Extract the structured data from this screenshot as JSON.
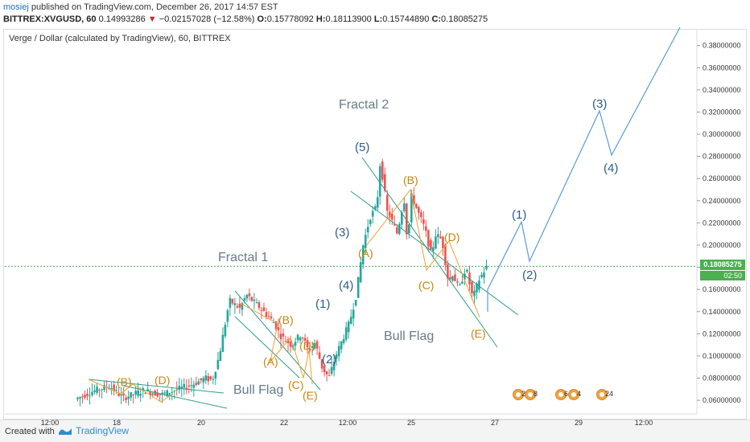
{
  "header": {
    "author": "mosiej",
    "published_text": "published on TradingView.com, December 26, 2017 14:57 EST",
    "symbol": "BITTREX:XVGUSD, 60",
    "last": "0.14993286",
    "change": "−0.02157028 (−12.58%)",
    "o_label": "O:",
    "o": "0.15778092",
    "h_label": "H:",
    "h": "0.18113900",
    "l_label": "L:",
    "l": "0.15744890",
    "c_label": "C:",
    "c": "0.18085275"
  },
  "chart_title": "Verge / Dollar (calculated by TradingView), 60, BITTREX",
  "price_badge": "0.18085275",
  "time_badge": "02:50",
  "footer": {
    "created": "Created with",
    "brand": "TradingView"
  },
  "colors": {
    "up": "#26a69a",
    "down": "#ef5350",
    "wave_blue": "#5b9bd5",
    "wave_orange": "#f0a030",
    "channel": "#2e9d8a",
    "label_blue": "#2b5d8c",
    "label_orange": "#c8860d",
    "annotation": "#667b8a",
    "price_line": "#4caf50"
  },
  "event_markers": [
    "2",
    "8",
    "6",
    "4",
    "24"
  ],
  "chart_data": {
    "type": "candlestick",
    "title": "Verge / Dollar (calculated by TradingView), 60, BITTREX",
    "x_ticks": [
      "12:00",
      "18",
      "20",
      "22",
      "12:00",
      "25",
      "27",
      "29",
      "12:00"
    ],
    "y_ticks": [
      "0.06000000",
      "0.08000000",
      "0.10000000",
      "0.12000000",
      "0.14000000",
      "0.16000000",
      "0.18000000",
      "0.20000000",
      "0.22000000",
      "0.24000000",
      "0.26000000",
      "0.28000000",
      "0.30000000",
      "0.32000000",
      "0.34000000",
      "0.36000000",
      "0.38000000"
    ],
    "ylim": [
      0.055,
      0.395
    ],
    "last_price": 0.18085275,
    "price_anchors": [
      [
        0.0,
        0.061
      ],
      [
        0.05,
        0.068
      ],
      [
        0.1,
        0.073
      ],
      [
        0.14,
        0.062
      ],
      [
        0.2,
        0.069
      ],
      [
        0.25,
        0.065
      ],
      [
        0.3,
        0.07
      ],
      [
        0.34,
        0.074
      ],
      [
        0.38,
        0.08
      ],
      [
        0.4,
        0.078
      ],
      [
        0.42,
        0.1
      ],
      [
        0.45,
        0.15
      ],
      [
        0.48,
        0.143
      ],
      [
        0.5,
        0.155
      ],
      [
        0.55,
        0.14
      ],
      [
        0.58,
        0.13
      ],
      [
        0.6,
        0.118
      ],
      [
        0.63,
        0.11
      ],
      [
        0.66,
        0.12
      ],
      [
        0.68,
        0.105
      ],
      [
        0.7,
        0.112
      ],
      [
        0.72,
        0.09
      ],
      [
        0.74,
        0.08
      ],
      [
        0.76,
        0.1
      ],
      [
        0.78,
        0.115
      ],
      [
        0.8,
        0.13
      ],
      [
        0.82,
        0.155
      ],
      [
        0.84,
        0.2
      ],
      [
        0.86,
        0.225
      ],
      [
        0.88,
        0.235
      ],
      [
        0.89,
        0.275
      ],
      [
        0.9,
        0.255
      ],
      [
        0.91,
        0.23
      ],
      [
        0.92,
        0.225
      ],
      [
        0.94,
        0.21
      ],
      [
        0.95,
        0.228
      ],
      [
        0.96,
        0.24
      ],
      [
        0.97,
        0.2
      ],
      [
        0.98,
        0.245
      ],
      [
        1.0,
        0.23
      ],
      [
        1.02,
        0.215
      ],
      [
        1.04,
        0.19
      ],
      [
        1.05,
        0.21
      ],
      [
        1.07,
        0.205
      ],
      [
        1.09,
        0.165
      ],
      [
        1.1,
        0.175
      ],
      [
        1.12,
        0.16
      ],
      [
        1.14,
        0.18
      ],
      [
        1.16,
        0.152
      ],
      [
        1.18,
        0.17
      ],
      [
        1.2,
        0.18
      ]
    ],
    "annotations": {
      "fractal1": "Fractal 1",
      "fractal2": "Fractal 2",
      "bullflag1": "Bull Flag",
      "bullflag2": "Bull Flag",
      "impulse_labels": [
        "(1)",
        "(2)",
        "(3)",
        "(4)",
        "(5)"
      ],
      "abcde_labels": [
        "(A)",
        "(B)",
        "(C)",
        "(D)",
        "(E)"
      ],
      "projection_labels": [
        "(1)",
        "(2)",
        "(3)",
        "(4)"
      ]
    },
    "projection_path": [
      [
        0.18,
        "27 00:00"
      ],
      [
        0.22,
        "27 12:00"
      ],
      [
        0.185,
        "28 00:00"
      ],
      [
        0.32,
        "29 12:00"
      ],
      [
        0.282,
        "30 00:00"
      ],
      [
        0.394,
        "31 00:00"
      ]
    ]
  }
}
